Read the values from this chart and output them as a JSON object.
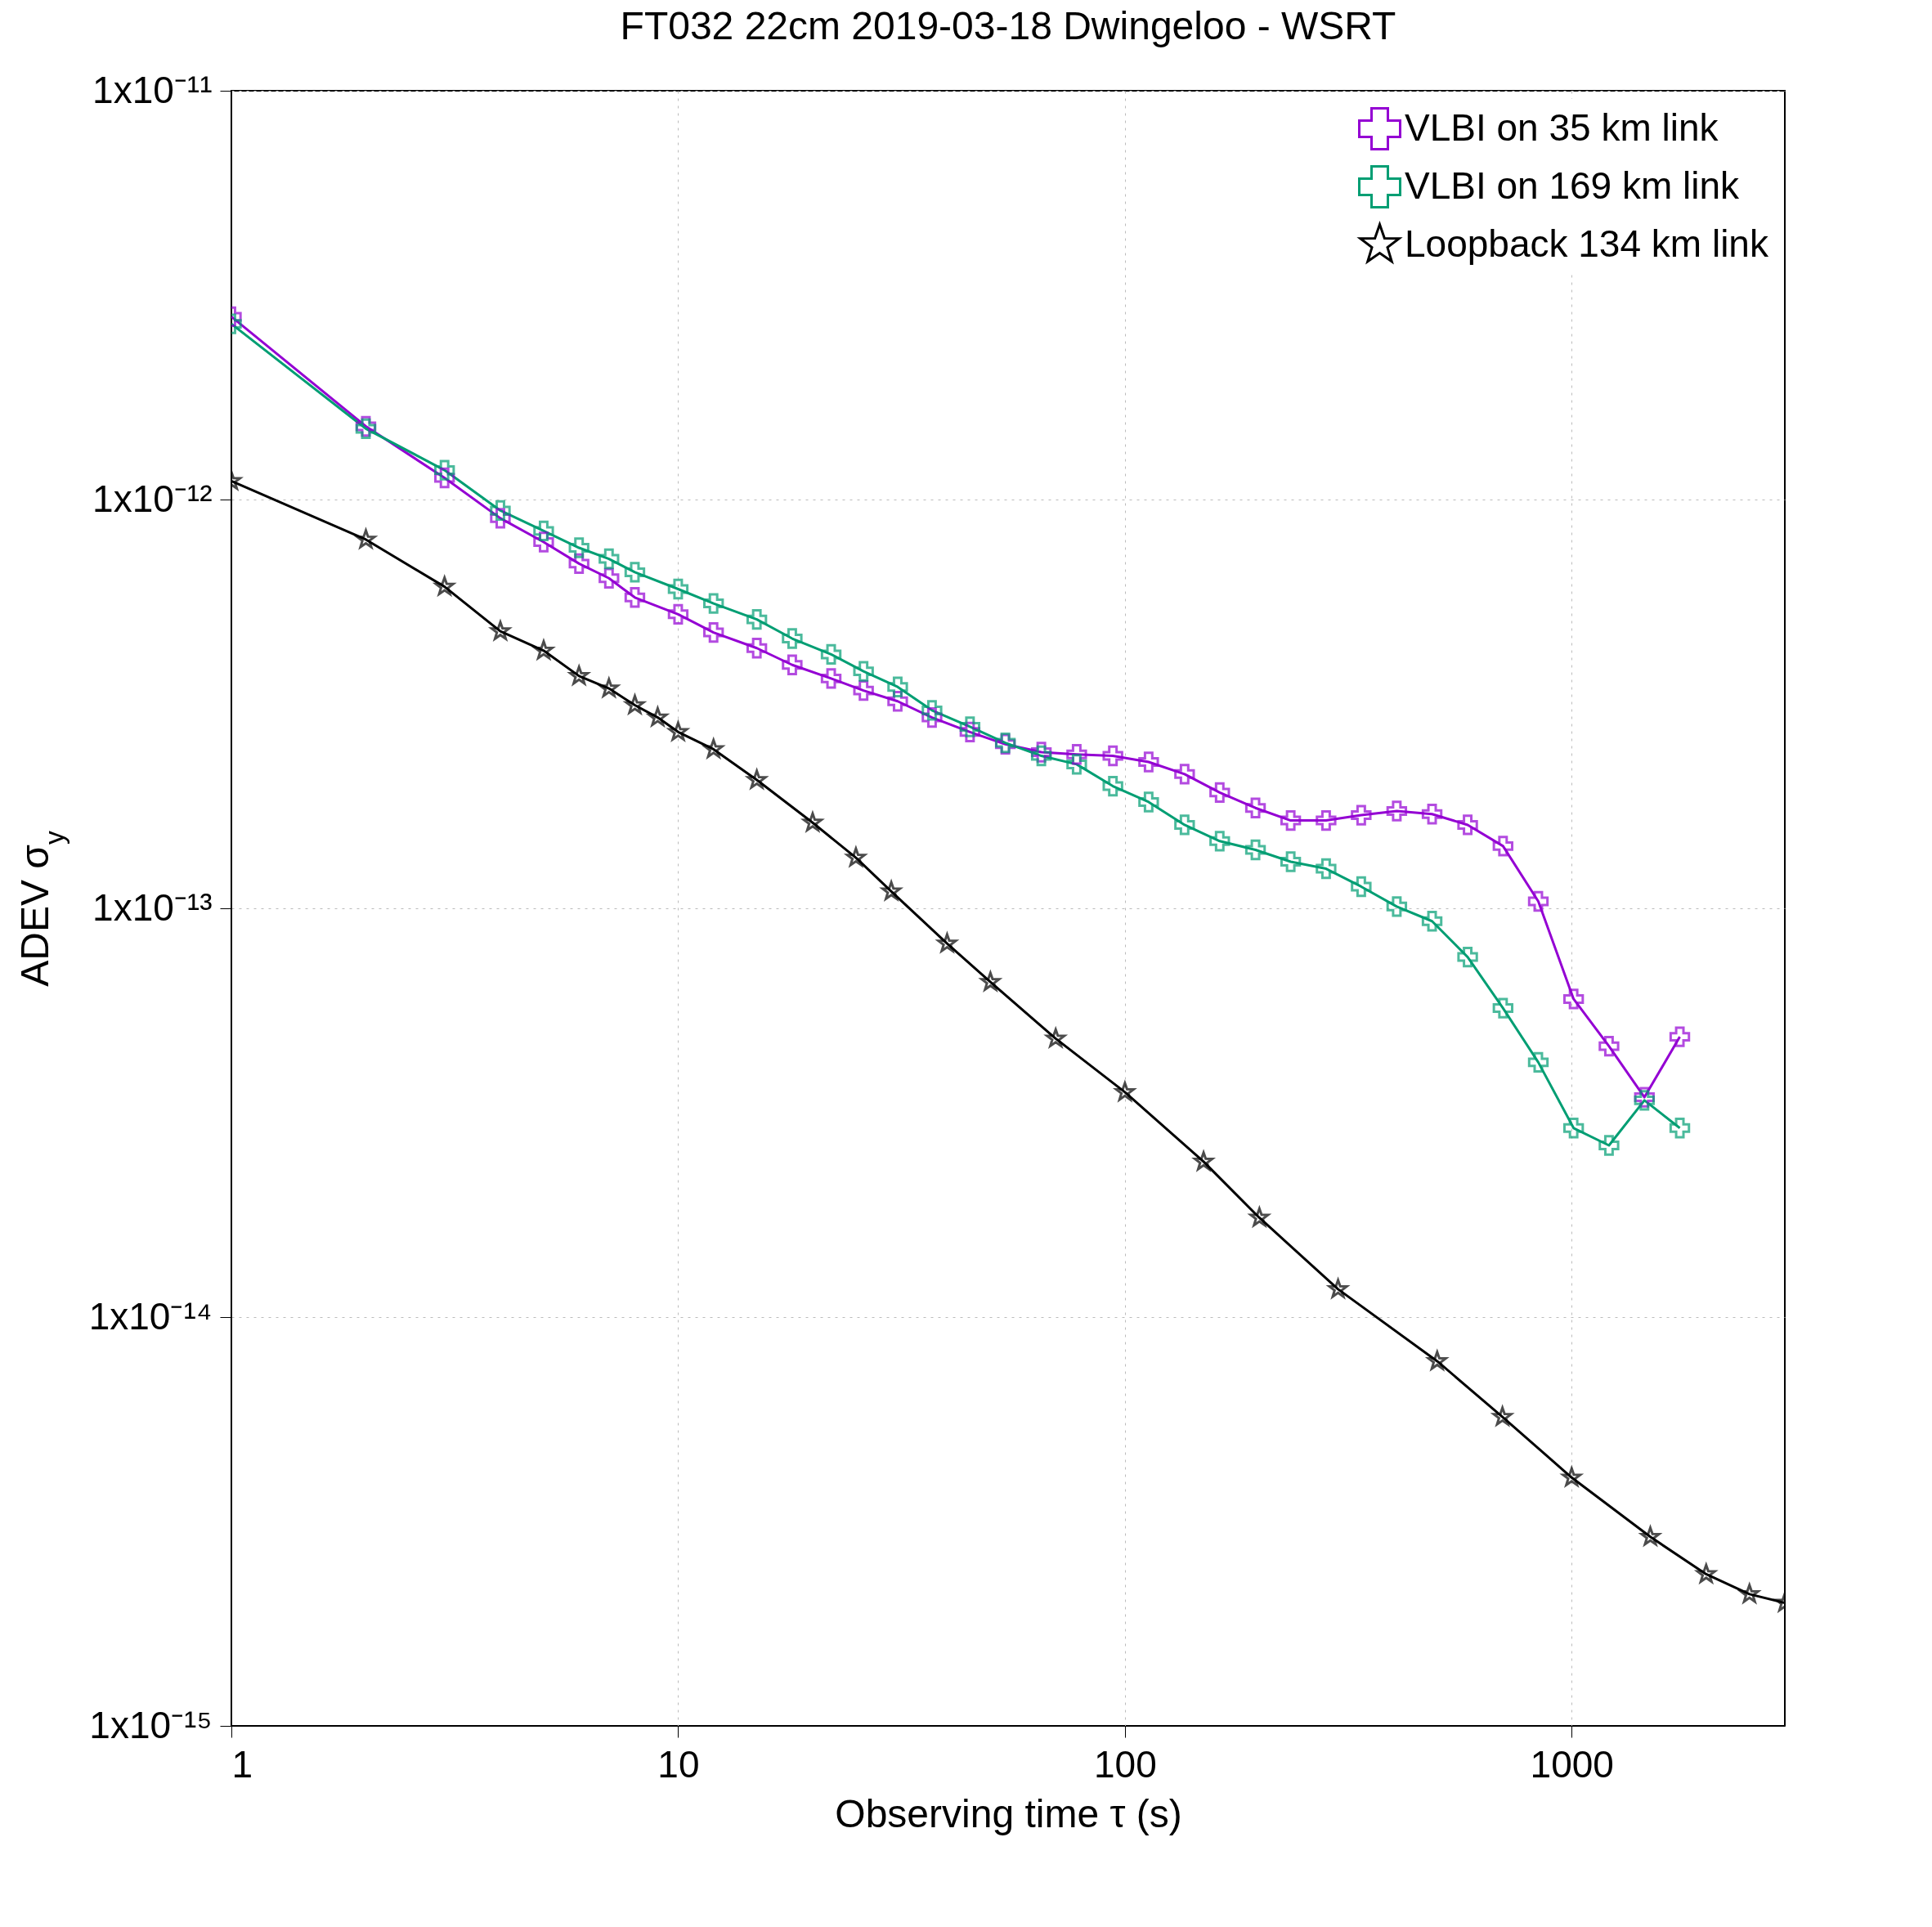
{
  "chart_data": {
    "type": "line",
    "title": "FT032 22cm 2019-03-18 Dwingeloo - WSRT",
    "xlabel": "Observing time τ (s)",
    "ylabel": "ADEV σ$_{y}$",
    "log": "xy",
    "grid": true,
    "legend": "top right",
    "xlim": [
      1,
      3000
    ],
    "xticks": [
      1,
      10,
      100,
      1000
    ],
    "ylim": [
      1e-15,
      1e-11
    ],
    "yticks": [
      {
        "value": 1e-15,
        "label": "1x10⁻¹⁵"
      },
      {
        "value": 1e-14,
        "label": "1x10⁻¹⁴"
      },
      {
        "value": 1e-13,
        "label": "1x10⁻¹³"
      },
      {
        "value": 1e-12,
        "label": "1x10⁻¹²"
      },
      {
        "value": 1e-11,
        "label": "1x10⁻¹¹"
      }
    ],
    "series": [
      {
        "name": "VLBI on 35 km link",
        "color": "#9400d3",
        "marker": "cross",
        "x": [
          1,
          2,
          3,
          4,
          5,
          6,
          7,
          8,
          10,
          12,
          15,
          18,
          22,
          26,
          31,
          37,
          45,
          54,
          65,
          78,
          94,
          113,
          136,
          163,
          196,
          235,
          282,
          338,
          406,
          487,
          585,
          702,
          842,
          1010,
          1212,
          1455,
          1746
        ],
        "values": [
          2.8e-12,
          1.51e-12,
          1.13e-12,
          9e-13,
          7.87e-13,
          6.97e-13,
          6.42e-13,
          5.76e-13,
          5.24e-13,
          4.73e-13,
          4.33e-13,
          3.94e-13,
          3.65e-13,
          3.41e-13,
          3.21e-13,
          2.93e-13,
          2.7e-13,
          2.52e-13,
          2.41e-13,
          2.38e-13,
          2.36e-13,
          2.28e-13,
          2.13e-13,
          1.92e-13,
          1.76e-13,
          1.64e-13,
          1.64e-13,
          1.69e-13,
          1.73e-13,
          1.7e-13,
          1.6e-13,
          1.42e-13,
          1.04e-13,
          6e-14,
          4.6e-14,
          3.45e-14,
          4.85e-14
        ]
      },
      {
        "name": "VLBI on 169 km link",
        "color": "#009e73",
        "marker": "cross",
        "x": [
          1,
          2,
          3,
          4,
          5,
          6,
          7,
          8,
          10,
          12,
          15,
          18,
          22,
          26,
          31,
          37,
          45,
          54,
          65,
          78,
          94,
          113,
          136,
          163,
          196,
          235,
          282,
          338,
          406,
          487,
          585,
          702,
          842,
          1010,
          1212,
          1455,
          1746
        ],
        "values": [
          2.69e-12,
          1.49e-12,
          1.18e-12,
          9.4e-13,
          8.38e-13,
          7.62e-13,
          7.16e-13,
          6.64e-13,
          6.04e-13,
          5.57e-13,
          5.09e-13,
          4.57e-13,
          4.18e-13,
          3.8e-13,
          3.48e-13,
          3.05e-13,
          2.78e-13,
          2.54e-13,
          2.36e-13,
          2.25e-13,
          1.99e-13,
          1.82e-13,
          1.6e-13,
          1.46e-13,
          1.39e-13,
          1.3e-13,
          1.25e-13,
          1.13e-13,
          1.01e-13,
          9.3e-14,
          7.6e-14,
          5.7e-14,
          4.2e-14,
          2.9e-14,
          2.63e-14,
          3.39e-14,
          2.9e-14
        ]
      },
      {
        "name": "Loopback 134 km link",
        "color": "#000000",
        "marker": "star",
        "x": [
          1,
          2,
          3,
          4,
          5,
          6,
          7,
          8,
          9,
          10,
          12,
          15,
          20,
          25,
          30,
          40,
          50,
          70,
          100,
          150,
          200,
          300,
          500,
          700,
          1000,
          1500,
          2000,
          2500,
          3000
        ],
        "values": [
          1.11e-12,
          7.98e-13,
          6.12e-13,
          4.76e-13,
          4.27e-13,
          3.7e-13,
          3.45e-13,
          3.14e-13,
          2.93e-13,
          2.7e-13,
          2.45e-13,
          2.06e-13,
          1.62e-13,
          1.33e-13,
          1.1e-13,
          8.2e-14,
          6.6e-14,
          4.8e-14,
          3.55e-14,
          2.4e-14,
          1.75e-14,
          1.17e-14,
          7.8e-15,
          5.7e-15,
          4.05e-15,
          2.9e-15,
          2.35e-15,
          2.1e-15,
          2e-15
        ]
      }
    ]
  }
}
